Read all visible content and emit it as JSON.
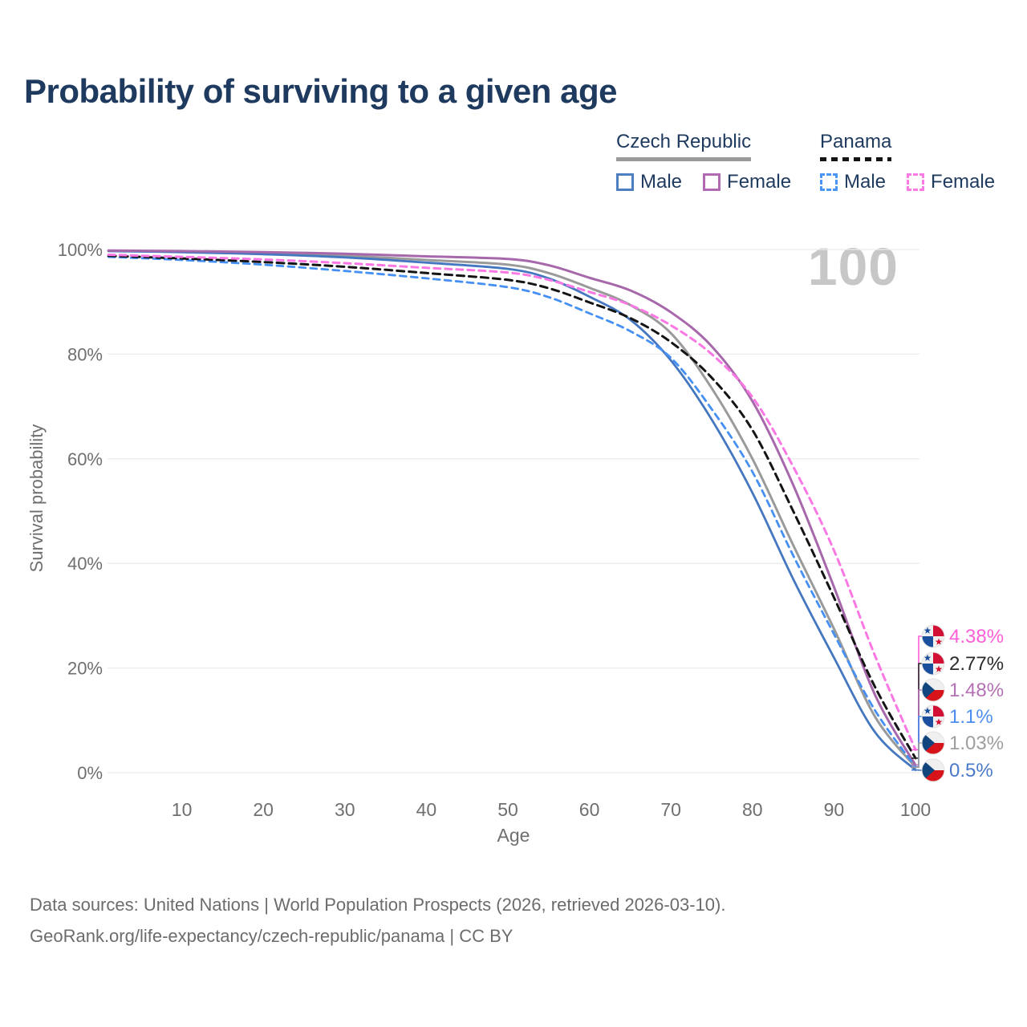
{
  "page": {
    "title": "Probability of surviving to a given age"
  },
  "watermark": "100",
  "legend": {
    "groups": [
      {
        "label": "Czech Republic",
        "underline_color": "#9a9a9a",
        "underline_style": "solid",
        "items": [
          {
            "label": "Male",
            "color": "#4e7ec2",
            "style": "solid"
          },
          {
            "label": "Female",
            "color": "#b06ab3",
            "style": "solid"
          }
        ]
      },
      {
        "label": "Panama",
        "underline_color": "#141414",
        "underline_style": "dashed",
        "items": [
          {
            "label": "Male",
            "color": "#4b95f4",
            "style": "dashed"
          },
          {
            "label": "Female",
            "color": "#fb7ae4",
            "style": "dashed"
          }
        ]
      }
    ]
  },
  "chart_data": {
    "type": "line",
    "title": "Probability of surviving to a given age",
    "xlabel": "Age",
    "ylabel": "Survival probability",
    "xlim": [
      1,
      100
    ],
    "ylim": [
      0,
      100
    ],
    "grid": "horizontal-only",
    "legend_position": "top-right",
    "x_ticks": [
      10,
      20,
      30,
      40,
      50,
      60,
      70,
      80,
      90,
      100
    ],
    "y_ticks": [
      {
        "value": 0,
        "label": "0%"
      },
      {
        "value": 20,
        "label": "20%"
      },
      {
        "value": 40,
        "label": "40%"
      },
      {
        "value": 60,
        "label": "60%"
      },
      {
        "value": 80,
        "label": "80%"
      },
      {
        "value": 100,
        "label": "100%"
      }
    ],
    "x": [
      1,
      10,
      20,
      30,
      40,
      50,
      55,
      60,
      65,
      70,
      75,
      80,
      85,
      90,
      95,
      100
    ],
    "series": [
      {
        "id": "cz-all",
        "name": "Czech Republic — All",
        "country": "Czech Republic",
        "sex": "Both",
        "color": "#9a9a9a",
        "dash": "",
        "width": 3,
        "values": [
          99.75,
          99.6,
          99.3,
          98.8,
          98.0,
          97.1,
          95.5,
          92.7,
          89.4,
          84.0,
          73.5,
          60.0,
          43.5,
          27.5,
          10.8,
          1.03
        ]
      },
      {
        "id": "cz-male",
        "name": "Czech Republic — Male",
        "country": "Czech Republic",
        "sex": "Male",
        "color": "#4577c0",
        "dash": "",
        "width": 2.8,
        "values": [
          99.7,
          99.5,
          99.1,
          98.5,
          97.5,
          96.3,
          94.5,
          91.0,
          86.6,
          78.8,
          67.5,
          53.5,
          37.0,
          22.0,
          7.8,
          0.5
        ]
      },
      {
        "id": "cz-female",
        "name": "Czech Republic — Female",
        "country": "Czech Republic",
        "sex": "Female",
        "color": "#a767ab",
        "dash": "",
        "width": 3,
        "values": [
          99.8,
          99.7,
          99.5,
          99.2,
          98.7,
          98.2,
          97.0,
          94.6,
          92.2,
          88.0,
          81.5,
          71.0,
          55.0,
          35.5,
          15.0,
          1.48
        ]
      },
      {
        "id": "pa-male",
        "name": "Panama — Male",
        "country": "Panama",
        "sex": "Male",
        "color": "#4590f2",
        "dash": "8 6",
        "width": 2.8,
        "values": [
          98.6,
          98.0,
          97.1,
          95.9,
          94.5,
          92.8,
          90.9,
          87.8,
          84.4,
          79.3,
          69.5,
          57.5,
          41.5,
          26.5,
          12.0,
          1.1
        ]
      },
      {
        "id": "pa-all",
        "name": "Panama — All",
        "country": "Panama",
        "sex": "Both",
        "color": "#141414",
        "dash": "9 6",
        "width": 3,
        "values": [
          98.8,
          98.3,
          97.6,
          96.7,
          95.5,
          94.2,
          92.6,
          89.9,
          86.9,
          82.3,
          75.5,
          65.5,
          50.0,
          33.5,
          16.5,
          2.77
        ]
      },
      {
        "id": "pa-female",
        "name": "Panama — Female",
        "country": "Panama",
        "sex": "Female",
        "color": "#fa78e4",
        "dash": "8 6",
        "width": 3,
        "values": [
          99.0,
          98.6,
          98.1,
          97.4,
          96.5,
          95.6,
          94.2,
          91.9,
          89.4,
          85.5,
          80.0,
          71.8,
          58.5,
          42.5,
          22.5,
          4.38
        ]
      }
    ],
    "end_labels": [
      {
        "series": "pa-female",
        "text": "4.38%",
        "color": "#ff5fd7",
        "flag": "panama-flag",
        "value": 4.38
      },
      {
        "series": "pa-all",
        "text": "2.77%",
        "color": "#2b2b2b",
        "flag": "panama-flag",
        "value": 2.77
      },
      {
        "series": "cz-female",
        "text": "1.48%",
        "color": "#b470b4",
        "flag": "czech-flag",
        "value": 1.48
      },
      {
        "series": "pa-male",
        "text": "1.1%",
        "color": "#4d8df0",
        "flag": "panama-flag",
        "value": 1.1
      },
      {
        "series": "cz-all",
        "text": "1.03%",
        "color": "#9e9e9e",
        "flag": "czech-flag",
        "value": 1.03
      },
      {
        "series": "cz-male",
        "text": "0.5%",
        "color": "#4b79c9",
        "flag": "czech-flag",
        "value": 0.5
      }
    ],
    "flag_colors": {
      "czech-flag": {
        "white": "#f0f0f0",
        "red": "#d7141a",
        "blue": "#11457e"
      },
      "panama-flag": {
        "white": "#f0f0f0",
        "red": "#d21034",
        "blue": "#1a4f9e"
      }
    }
  },
  "footer": {
    "line1": "Data sources: United Nations | World Population Prospects (2026, retrieved 2026-03-10).",
    "line2": "GeoRank.org/life-expectancy/czech-republic/panama | CC BY"
  }
}
